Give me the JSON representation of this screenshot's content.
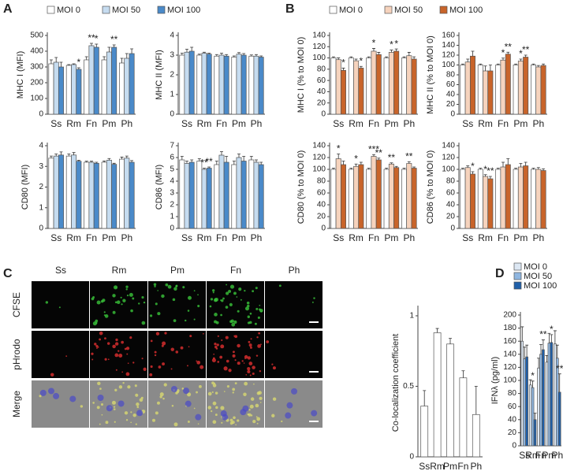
{
  "panels": [
    "A",
    "B",
    "C",
    "D"
  ],
  "microscopy": {
    "columns": [
      "Ss",
      "Rm",
      "Pm",
      "Fn",
      "Ph"
    ],
    "rows": [
      "CFSE",
      "pHrodo",
      "Merge"
    ]
  },
  "chart_data": [
    {
      "type": "bar",
      "ylabel": "MHC I (MFI)",
      "categories": [
        "Ss",
        "Rm",
        "Fn",
        "Pm",
        "Ph"
      ],
      "ylim": [
        0,
        500
      ],
      "yticks": [
        0,
        100,
        200,
        300,
        400,
        500
      ],
      "legend": "top",
      "series": [
        {
          "name": "MOI 0",
          "color": "#ffffff",
          "values": [
            320,
            310,
            345,
            345,
            325
          ],
          "errors": [
            25,
            5,
            20,
            20,
            30
          ],
          "sig": [
            null,
            null,
            null,
            null,
            null
          ]
        },
        {
          "name": "MOI 50",
          "color": "#c6dcf0",
          "values": [
            330,
            315,
            435,
            395,
            355
          ],
          "errors": [
            30,
            5,
            15,
            30,
            30
          ],
          "sig": [
            null,
            null,
            "**",
            null,
            null
          ]
        },
        {
          "name": "MOI 100",
          "color": "#4a8ac9",
          "values": [
            300,
            285,
            425,
            425,
            385
          ],
          "errors": [
            30,
            10,
            20,
            15,
            30
          ],
          "sig": [
            null,
            "*",
            "*",
            "**",
            null
          ]
        }
      ]
    },
    {
      "type": "bar",
      "ylabel": "MHC II (MFI)",
      "categories": [
        "Ss",
        "Rm",
        "Fn",
        "Pm",
        "Ph"
      ],
      "ylim": [
        0,
        4
      ],
      "yticks": [
        0,
        1,
        2,
        3,
        4
      ],
      "legend": "none",
      "series": [
        {
          "name": "MOI 0",
          "color": "#ffffff",
          "values": [
            3.0,
            3.0,
            2.95,
            2.9,
            2.95
          ],
          "errors": [
            0.1,
            0.05,
            0.08,
            0.06,
            0.06
          ],
          "sig": [
            null,
            null,
            null,
            null,
            null
          ]
        },
        {
          "name": "MOI 50",
          "color": "#c6dcf0",
          "values": [
            3.15,
            3.1,
            3.0,
            3.05,
            2.95
          ],
          "errors": [
            0.15,
            0.05,
            0.1,
            0.08,
            0.08
          ],
          "sig": [
            null,
            null,
            null,
            null,
            null
          ]
        },
        {
          "name": "MOI 100",
          "color": "#4a8ac9",
          "values": [
            3.2,
            3.05,
            2.95,
            3.0,
            2.9
          ],
          "errors": [
            0.2,
            0.05,
            0.08,
            0.08,
            0.06
          ],
          "sig": [
            null,
            null,
            null,
            null,
            null
          ]
        }
      ]
    },
    {
      "type": "bar",
      "ylabel": "MHC I (% to MOI 0)",
      "categories": [
        "Ss",
        "Rm",
        "Fn",
        "Pm",
        "Ph"
      ],
      "ylim": [
        0,
        140
      ],
      "yticks": [
        0,
        20,
        40,
        60,
        80,
        100,
        120,
        140
      ],
      "legend": "top",
      "series": [
        {
          "name": "MOI 0",
          "color": "#ffffff",
          "values": [
            100,
            100,
            100,
            100,
            100
          ],
          "errors": [
            2,
            2,
            2,
            2,
            2
          ],
          "sig": [
            null,
            null,
            null,
            null,
            null
          ]
        },
        {
          "name": "MOI 50",
          "color": "#f6d3bd",
          "values": [
            97,
            95,
            112,
            110,
            104
          ],
          "errors": [
            3,
            3,
            5,
            4,
            6
          ],
          "sig": [
            null,
            null,
            "*",
            "*",
            null
          ]
        },
        {
          "name": "MOI 100",
          "color": "#c8642a",
          "values": [
            78,
            82,
            106,
            112,
            98
          ],
          "errors": [
            4,
            3,
            4,
            4,
            4
          ],
          "sig": [
            "*",
            "*",
            null,
            "*",
            null
          ]
        }
      ]
    },
    {
      "type": "bar",
      "ylabel": "MHC II (% to MOI 0)",
      "categories": [
        "Ss",
        "Rm",
        "Fn",
        "Pm",
        "Ph"
      ],
      "ylim": [
        0,
        160
      ],
      "yticks": [
        0,
        20,
        40,
        60,
        80,
        100,
        120,
        140,
        160
      ],
      "legend": "none",
      "series": [
        {
          "name": "MOI 0",
          "color": "#ffffff",
          "values": [
            100,
            100,
            100,
            100,
            100
          ],
          "errors": [
            2,
            2,
            2,
            2,
            2
          ],
          "sig": [
            null,
            null,
            null,
            null,
            null
          ]
        },
        {
          "name": "MOI 50",
          "color": "#f6d3bd",
          "values": [
            106,
            88,
            110,
            108,
            96
          ],
          "errors": [
            6,
            10,
            4,
            4,
            3
          ],
          "sig": [
            null,
            null,
            "*",
            "*",
            null
          ]
        },
        {
          "name": "MOI 100",
          "color": "#c8642a",
          "values": [
            118,
            88,
            122,
            116,
            99
          ],
          "errors": [
            10,
            12,
            4,
            4,
            3
          ],
          "sig": [
            null,
            null,
            "**",
            "**",
            null
          ]
        }
      ]
    },
    {
      "type": "bar",
      "ylabel": "CD80 (MFI)",
      "categories": [
        "Ss",
        "Rm",
        "Fn",
        "Pm",
        "Ph"
      ],
      "ylim": [
        0,
        4
      ],
      "yticks": [
        0,
        1,
        2,
        3,
        4
      ],
      "legend": "none",
      "series": [
        {
          "name": "MOI 0",
          "color": "#ffffff",
          "values": [
            3.4,
            3.5,
            3.2,
            3.2,
            3.35
          ],
          "errors": [
            0.1,
            0.1,
            0.05,
            0.06,
            0.1
          ],
          "sig": [
            null,
            null,
            null,
            null,
            null
          ]
        },
        {
          "name": "MOI 50",
          "color": "#c6dcf0",
          "values": [
            3.5,
            3.55,
            3.2,
            3.3,
            3.4
          ],
          "errors": [
            0.1,
            0.12,
            0.05,
            0.08,
            0.1
          ],
          "sig": [
            null,
            null,
            null,
            null,
            null
          ]
        },
        {
          "name": "MOI 100",
          "color": "#4a8ac9",
          "values": [
            3.55,
            3.25,
            3.15,
            3.1,
            3.2
          ],
          "errors": [
            0.15,
            0.05,
            0.05,
            0.05,
            0.08
          ],
          "sig": [
            null,
            null,
            null,
            null,
            null
          ]
        }
      ]
    },
    {
      "type": "bar",
      "ylabel": "CD86 (MFI)",
      "categories": [
        "Ss",
        "Rm",
        "Fn",
        "Pm",
        "Ph"
      ],
      "ylim": [
        0,
        7
      ],
      "yticks": [
        0,
        1,
        2,
        3,
        4,
        5,
        6,
        7
      ],
      "legend": "none",
      "series": [
        {
          "name": "MOI 0",
          "color": "#ffffff",
          "values": [
            5.8,
            5.7,
            5.4,
            5.4,
            5.8
          ],
          "errors": [
            0.3,
            0.2,
            0.3,
            0.3,
            0.3
          ],
          "sig": [
            null,
            null,
            null,
            null,
            null
          ]
        },
        {
          "name": "MOI 50",
          "color": "#c6dcf0",
          "values": [
            5.5,
            5.0,
            6.2,
            6.0,
            5.6
          ],
          "errors": [
            0.2,
            0.1,
            0.3,
            0.3,
            0.2
          ],
          "sig": [
            null,
            "**",
            null,
            null,
            null
          ]
        },
        {
          "name": "MOI 100",
          "color": "#4a8ac9",
          "values": [
            5.6,
            5.1,
            5.6,
            5.7,
            5.4
          ],
          "errors": [
            0.2,
            0.1,
            0.5,
            0.4,
            0.2
          ],
          "sig": [
            null,
            "**",
            null,
            null,
            null
          ]
        }
      ]
    },
    {
      "type": "bar",
      "ylabel": "CD80 (% to MOI 0)",
      "categories": [
        "Ss",
        "Rm",
        "Fn",
        "Pm",
        "Ph"
      ],
      "ylim": [
        0,
        140
      ],
      "yticks": [
        0,
        20,
        40,
        60,
        80,
        100,
        120,
        140
      ],
      "legend": "none",
      "series": [
        {
          "name": "MOI 0",
          "color": "#ffffff",
          "values": [
            100,
            100,
            100,
            100,
            100
          ],
          "errors": [
            2,
            2,
            2,
            2,
            2
          ],
          "sig": [
            null,
            null,
            null,
            null,
            null
          ]
        },
        {
          "name": "MOI 50",
          "color": "#f6d3bd",
          "values": [
            118,
            105,
            122,
            109,
            110
          ],
          "errors": [
            8,
            4,
            3,
            2,
            3
          ],
          "sig": [
            "*",
            "*",
            "***",
            "**",
            "**"
          ]
        },
        {
          "name": "MOI 100",
          "color": "#c8642a",
          "values": [
            108,
            108,
            116,
            103,
            102
          ],
          "errors": [
            6,
            4,
            3,
            2,
            2
          ],
          "sig": [
            null,
            null,
            "**",
            null,
            null
          ]
        }
      ]
    },
    {
      "type": "bar",
      "ylabel": "CD86 (% to MOI 0)",
      "categories": [
        "Ss",
        "Rm",
        "Fn",
        "Pm",
        "Ph"
      ],
      "ylim": [
        0,
        140
      ],
      "yticks": [
        0,
        20,
        40,
        60,
        80,
        100,
        120,
        140
      ],
      "legend": "none",
      "series": [
        {
          "name": "MOI 0",
          "color": "#ffffff",
          "values": [
            100,
            100,
            100,
            100,
            100
          ],
          "errors": [
            2,
            2,
            2,
            2,
            2
          ],
          "sig": [
            null,
            null,
            null,
            null,
            null
          ]
        },
        {
          "name": "MOI 50",
          "color": "#f6d3bd",
          "values": [
            103,
            88,
            104,
            104,
            100
          ],
          "errors": [
            3,
            3,
            8,
            6,
            3
          ],
          "sig": [
            null,
            "*",
            null,
            null,
            null
          ]
        },
        {
          "name": "MOI 100",
          "color": "#c8642a",
          "values": [
            92,
            84,
            108,
            106,
            98
          ],
          "errors": [
            4,
            4,
            10,
            6,
            3
          ],
          "sig": [
            "*",
            "**",
            null,
            null,
            null
          ]
        }
      ]
    },
    {
      "type": "bar",
      "ylabel": "Co-localization coefficient",
      "categories": [
        "Ss",
        "Rm",
        "Pm",
        "Fn",
        "Ph"
      ],
      "ylim": [
        0,
        1.05
      ],
      "yticks": [
        0,
        0.5,
        1
      ],
      "legend": "none",
      "color": "#ffffff",
      "values": [
        0.36,
        0.88,
        0.8,
        0.56,
        0.3
      ],
      "errors": [
        0.11,
        0.03,
        0.04,
        0.05,
        0.2
      ]
    },
    {
      "type": "bar",
      "ylabel": "IFNλ (pg/ml)",
      "categories": [
        "Ss",
        "Rm",
        "Fn",
        "Pm",
        "Ph"
      ],
      "ylim": [
        0,
        200
      ],
      "yticks": [
        0,
        20,
        40,
        60,
        80,
        100,
        120,
        140,
        160,
        180,
        200
      ],
      "legend": "stacked",
      "series": [
        {
          "name": "MOI 0",
          "color": "#dce7f3",
          "values": [
            160,
            93,
            119,
            128,
            156
          ],
          "errors": [
            22,
            8,
            15,
            10,
            20
          ],
          "sig": [
            null,
            null,
            null,
            null,
            null
          ]
        },
        {
          "name": "MOI 50",
          "color": "#8fb6e0",
          "values": [
            133,
            89,
            140,
            157,
            134
          ],
          "errors": [
            18,
            10,
            15,
            15,
            20
          ],
          "sig": [
            null,
            "*",
            null,
            null,
            null
          ]
        },
        {
          "name": "MOI 100",
          "color": "#1f5fa8",
          "values": [
            136,
            40,
            147,
            158,
            82
          ],
          "errors": [
            18,
            10,
            15,
            12,
            28
          ],
          "sig": [
            null,
            null,
            "**",
            "*",
            "**"
          ]
        }
      ]
    }
  ]
}
